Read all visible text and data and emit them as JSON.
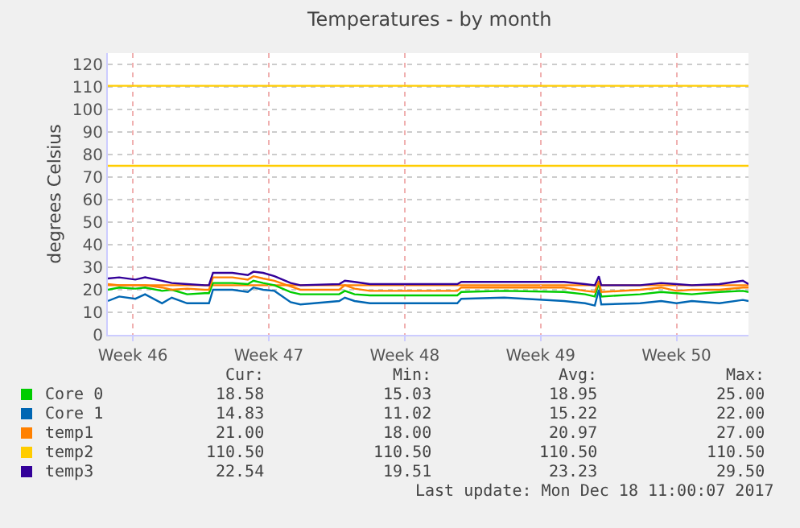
{
  "chart_data": {
    "type": "line",
    "title": "Temperatures - by month",
    "ylabel": "degrees Celsius",
    "x": [
      "2017-11-15T05:00",
      "2017-11-15T19:00",
      "2017-11-16T15:00",
      "2017-11-17T03:00",
      "2017-11-18T00:00",
      "2017-11-18T12:00",
      "2017-11-19T07:00",
      "2017-11-20T05:00",
      "2017-11-20T10:00",
      "2017-11-20T15:00",
      "2017-11-21T15:00",
      "2017-11-22T10:00",
      "2017-11-22T17:00",
      "2017-11-23T05:00",
      "2017-11-23T19:00",
      "2017-11-24T15:00",
      "2017-11-25T03:00",
      "2017-11-27T03:00",
      "2017-11-27T10:00",
      "2017-11-27T22:00",
      "2017-11-28T17:00",
      "2017-12-01T12:00",
      "2017-12-03T05:00",
      "2017-12-03T10:00",
      "2017-12-05T15:00",
      "2017-12-08T17:00",
      "2017-12-09T19:00",
      "2017-12-10T07:00",
      "2017-12-10T12:00",
      "2017-12-10T15:00",
      "2017-12-12T15:00",
      "2017-12-13T17:00",
      "2017-12-14T12:00",
      "2017-12-15T07:00",
      "2017-12-16T17:00",
      "2017-12-17T22:00",
      "2017-12-18T05:00"
    ],
    "series": [
      {
        "name": "Core 0",
        "color": "#00cc00",
        "values": [
          20,
          21,
          20.5,
          21,
          19.5,
          20,
          18,
          18.5,
          18.5,
          23,
          23,
          22.5,
          24,
          23,
          22,
          19,
          18,
          18,
          19.5,
          18,
          17.5,
          17.5,
          17.5,
          19,
          19.5,
          19,
          18,
          17,
          23,
          17,
          18,
          19,
          18.5,
          18,
          19,
          19.5,
          19
        ]
      },
      {
        "name": "Core 1",
        "color": "#0066b3",
        "values": [
          15,
          17,
          16,
          18,
          14,
          16.5,
          14,
          14,
          14,
          20,
          20,
          19,
          21,
          20,
          19.5,
          14.5,
          13.5,
          15,
          16.5,
          15,
          14,
          14,
          14,
          16,
          16.5,
          15,
          14,
          13,
          20,
          13.5,
          14,
          15,
          14,
          15,
          14,
          15.5,
          15
        ]
      },
      {
        "name": "temp1",
        "color": "#ff8000",
        "values": [
          22.5,
          22,
          22,
          22,
          21,
          20,
          20.5,
          20,
          20,
          25.5,
          25.5,
          24.5,
          26,
          25,
          24,
          21.5,
          20,
          20,
          22,
          20.5,
          19.5,
          19.5,
          19.5,
          21,
          21,
          21,
          19.5,
          19,
          24,
          19,
          20,
          21,
          19.5,
          20,
          20,
          21,
          21
        ]
      },
      {
        "name": "temp2",
        "color": "#ffcc00",
        "x": [
          "2017-11-15T05:00",
          "2017-12-18T05:00"
        ],
        "values": [
          110.5,
          110.5
        ]
      },
      {
        "name": "temp3",
        "color": "#330099",
        "values": [
          25,
          25.5,
          24.5,
          25.5,
          24,
          23,
          22.5,
          22,
          22,
          27.5,
          27.5,
          26.5,
          28,
          27.5,
          26,
          23,
          22,
          22.5,
          24,
          23.5,
          22.5,
          22.5,
          22.5,
          23.5,
          23.5,
          23.5,
          22.5,
          22,
          26,
          22,
          22,
          23,
          22.5,
          22,
          22.5,
          24,
          22.5
        ]
      }
    ],
    "ref_lines": [
      {
        "axis": "y",
        "value": 75,
        "color": "#ffcc00"
      },
      {
        "axis": "y",
        "value": 22,
        "color": "#ff8000"
      }
    ],
    "xlim": [
      "2017-11-15T05:00",
      "2017-12-18T05:00"
    ],
    "xticks": [
      {
        "value": "2017-11-16T12:00",
        "label": "Week 46"
      },
      {
        "value": "2017-11-23T12:00",
        "label": "Week 47"
      },
      {
        "value": "2017-11-30T12:00",
        "label": "Week 48"
      },
      {
        "value": "2017-12-07T12:00",
        "label": "Week 49"
      },
      {
        "value": "2017-12-14T12:00",
        "label": "Week 50"
      }
    ],
    "ylim": [
      0,
      125
    ],
    "yticks": [
      0,
      10,
      20,
      30,
      40,
      50,
      60,
      70,
      80,
      90,
      100,
      110,
      120
    ],
    "grid": true,
    "legend": "bottom",
    "marker": "none",
    "line_style": "solid",
    "annotations": [
      "Cur:",
      "Min:",
      "Avg:",
      "Max:",
      "18.58",
      "15.03",
      "18.95",
      "25.00",
      "14.83",
      "11.02",
      "15.22",
      "22.00",
      "21.00",
      "18.00",
      "20.97",
      "27.00",
      "110.50",
      "110.50",
      "110.50",
      "110.50",
      "22.54",
      "19.51",
      "23.23",
      "29.50",
      "Last update: Mon Dec 18 11:00:07 2017"
    ]
  }
}
